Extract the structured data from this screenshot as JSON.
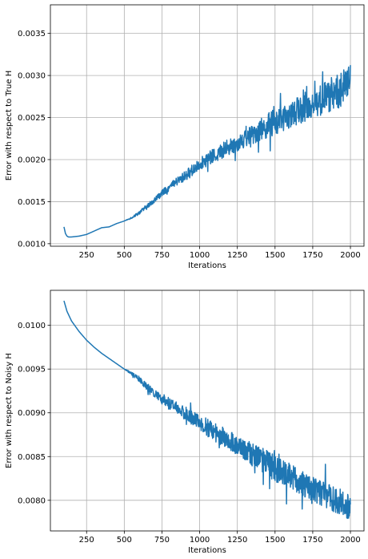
{
  "chart_data": [
    {
      "type": "line",
      "title": "",
      "xlabel": "Iterations",
      "ylabel": "Error with respect to True H",
      "xlim": [
        10,
        2090
      ],
      "ylim": [
        0.00097,
        0.00384
      ],
      "xticks": [
        250,
        500,
        750,
        1000,
        1250,
        1500,
        1750,
        2000
      ],
      "xtick_labels": [
        "250",
        "500",
        "750",
        "1000",
        "1250",
        "1500",
        "1750",
        "2000"
      ],
      "yticks": [
        0.001,
        0.0015,
        0.002,
        0.0025,
        0.003,
        0.0035
      ],
      "ytick_labels": [
        "0.0010",
        "0.0015",
        "0.0020",
        "0.0025",
        "0.0030",
        "0.0035"
      ],
      "grid": true,
      "color": "#1f77b4",
      "series": [
        {
          "x": [
            100,
            110,
            120,
            130,
            150,
            200,
            250,
            300,
            350,
            400,
            450,
            500,
            550,
            600,
            650,
            700,
            750,
            800,
            850,
            900,
            950,
            1000,
            1050,
            1100,
            1150,
            1200,
            1250,
            1300,
            1350,
            1400,
            1450,
            1500,
            1550,
            1600,
            1650,
            1700,
            1750,
            1800,
            1850,
            1900,
            1950,
            2000
          ],
          "y": [
            0.0012,
            0.00112,
            0.00109,
            0.00108,
            0.00108,
            0.00109,
            0.00111,
            0.00115,
            0.00119,
            0.0012,
            0.00124,
            0.00127,
            0.00131,
            0.00137,
            0.00144,
            0.00152,
            0.0016,
            0.00167,
            0.00174,
            0.0018,
            0.00187,
            0.00195,
            0.002,
            0.00205,
            0.0021,
            0.00215,
            0.0022,
            0.00225,
            0.0023,
            0.00235,
            0.0024,
            0.00245,
            0.00248,
            0.00252,
            0.00258,
            0.00262,
            0.00266,
            0.0027,
            0.00276,
            0.0028,
            0.00285,
            0.00295
          ],
          "noise_amplitude": [
            0,
            0,
            0,
            0,
            0,
            0,
            0,
            0,
            0,
            0,
            0,
            0,
            1e-05,
            2e-05,
            3e-05,
            3e-05,
            4e-05,
            4e-05,
            5e-05,
            6e-05,
            7e-05,
            7e-05,
            8e-05,
            9e-05,
            9e-05,
            0.0001,
            0.0001,
            0.00011,
            0.00012,
            0.00013,
            0.00014,
            0.0002,
            0.00014,
            0.00015,
            0.00016,
            0.00017,
            0.00018,
            0.00019,
            0.0002,
            0.00021,
            0.00022,
            0.00018
          ]
        }
      ]
    },
    {
      "type": "line",
      "title": "",
      "xlabel": "Iterations",
      "ylabel": "Error with respect to Noisy H",
      "xlim": [
        10,
        2090
      ],
      "ylim": [
        0.00765,
        0.0104
      ],
      "xticks": [
        250,
        500,
        750,
        1000,
        1250,
        1500,
        1750,
        2000
      ],
      "xtick_labels": [
        "250",
        "500",
        "750",
        "1000",
        "1250",
        "1500",
        "1750",
        "2000"
      ],
      "yticks": [
        0.008,
        0.0085,
        0.009,
        0.0095,
        0.01
      ],
      "ytick_labels": [
        "0.0080",
        "0.0085",
        "0.0090",
        "0.0095",
        "0.0100"
      ],
      "grid": true,
      "color": "#1f77b4",
      "series": [
        {
          "x": [
            100,
            120,
            150,
            200,
            250,
            300,
            350,
            400,
            450,
            500,
            550,
            600,
            650,
            700,
            750,
            800,
            850,
            900,
            950,
            1000,
            1050,
            1100,
            1150,
            1200,
            1250,
            1300,
            1350,
            1400,
            1450,
            1500,
            1550,
            1600,
            1650,
            1700,
            1750,
            1800,
            1850,
            1900,
            1950,
            2000
          ],
          "y": [
            0.01028,
            0.01016,
            0.01005,
            0.00993,
            0.00983,
            0.00975,
            0.00968,
            0.00962,
            0.00956,
            0.0095,
            0.00945,
            0.00938,
            0.0093,
            0.00922,
            0.00916,
            0.0091,
            0.00905,
            0.009,
            0.00894,
            0.0089,
            0.00883,
            0.00878,
            0.00873,
            0.00868,
            0.00862,
            0.00858,
            0.00852,
            0.00848,
            0.00843,
            0.0084,
            0.00833,
            0.00828,
            0.00823,
            0.00818,
            0.00812,
            0.00808,
            0.00804,
            0.008,
            0.00797,
            0.0079
          ],
          "noise_amplitude": [
            0,
            0,
            0,
            0,
            0,
            0,
            0,
            0,
            0,
            0,
            2e-05,
            3e-05,
            4e-05,
            5e-05,
            6e-05,
            7e-05,
            7e-05,
            8e-05,
            8e-05,
            9e-05,
            0.0001,
            0.0001,
            0.00011,
            0.00011,
            0.00012,
            0.00012,
            0.00013,
            0.00014,
            0.00014,
            0.0002,
            0.00014,
            0.00014,
            0.00015,
            0.00015,
            0.00015,
            0.00015,
            0.00015,
            0.00015,
            0.00015,
            0.00014
          ]
        }
      ]
    }
  ]
}
